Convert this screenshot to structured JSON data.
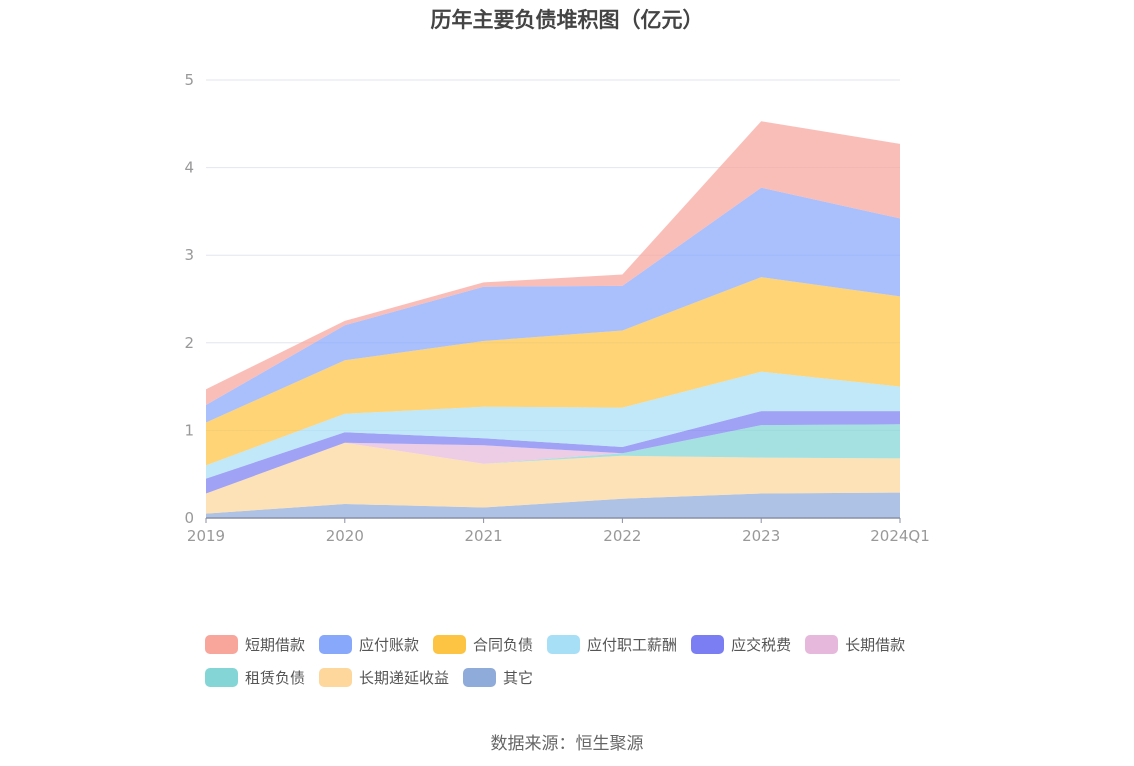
{
  "title": "历年主要负债堆积图（亿元）",
  "source": "数据来源：恒生聚源",
  "chart_data": {
    "type": "area",
    "stacked": true,
    "title": "历年主要负债堆积图（亿元）",
    "categories": [
      "2019",
      "2020",
      "2021",
      "2022",
      "2023",
      "2024Q1"
    ],
    "ylim": [
      0,
      5
    ],
    "yticks": [
      "0",
      "1",
      "2",
      "3",
      "4",
      "5"
    ],
    "grid": true,
    "legend_position": "bottom",
    "series": [
      {
        "name": "其它",
        "color": "#8eabd9",
        "values": [
          0.05,
          0.16,
          0.12,
          0.22,
          0.28,
          0.29
        ]
      },
      {
        "name": "长期递延收益",
        "color": "#fdd79b",
        "values": [
          0.23,
          0.7,
          0.5,
          0.49,
          0.41,
          0.39
        ]
      },
      {
        "name": "租赁负债",
        "color": "#84d6d6",
        "values": [
          0.0,
          0.0,
          0.0,
          0.03,
          0.37,
          0.39
        ]
      },
      {
        "name": "长期借款",
        "color": "#e6b8dc",
        "values": [
          0.0,
          0.0,
          0.21,
          0.0,
          0.0,
          0.0
        ]
      },
      {
        "name": "应交税费",
        "color": "#7b7ef2",
        "values": [
          0.17,
          0.12,
          0.08,
          0.07,
          0.16,
          0.15
        ]
      },
      {
        "name": "应付职工薪酬",
        "color": "#a7dff7",
        "values": [
          0.15,
          0.21,
          0.36,
          0.45,
          0.45,
          0.28
        ]
      },
      {
        "name": "合同负债",
        "color": "#fdc342",
        "values": [
          0.49,
          0.61,
          0.75,
          0.88,
          1.08,
          1.03
        ]
      },
      {
        "name": "应付账款",
        "color": "#88a8fc",
        "values": [
          0.2,
          0.4,
          0.62,
          0.51,
          1.02,
          0.89
        ]
      },
      {
        "name": "短期借款",
        "color": "#f8a59c",
        "values": [
          0.18,
          0.05,
          0.05,
          0.13,
          0.76,
          0.85
        ]
      }
    ]
  },
  "legend": [
    [
      {
        "label": "短期借款",
        "color": "#f8a59c"
      },
      {
        "label": "应付账款",
        "color": "#88a8fc"
      },
      {
        "label": "合同负债",
        "color": "#fdc342"
      },
      {
        "label": "应付职工薪酬",
        "color": "#a7dff7"
      },
      {
        "label": "应交税费",
        "color": "#7b7ef2"
      },
      {
        "label": "长期借款",
        "color": "#e6b8dc"
      }
    ],
    [
      {
        "label": "租赁负债",
        "color": "#84d6d6"
      },
      {
        "label": "长期递延收益",
        "color": "#fdd79b"
      },
      {
        "label": "其它",
        "color": "#8eabd9"
      }
    ]
  ]
}
